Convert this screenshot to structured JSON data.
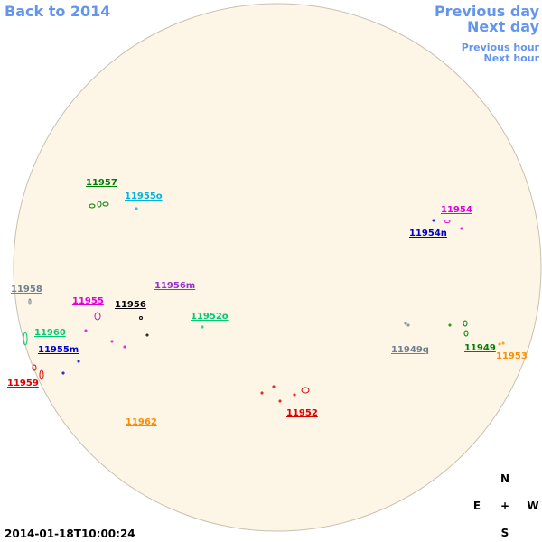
{
  "nav": {
    "back": "Back to 2014",
    "previous_day": "Previous day",
    "next_day": "Next day",
    "previous_hour": "Previous hour",
    "next_hour": "Next hour"
  },
  "timestamp": "2014-01-18T10:00:24",
  "compass": {
    "north": "N",
    "east": "E",
    "center": "+",
    "west": "W",
    "south": "S"
  },
  "regions": [
    {
      "label": "11957",
      "color": "#008000"
    },
    {
      "label": "11955o",
      "color": "#00b4e0"
    },
    {
      "label": "11954",
      "color": "#e000e0"
    },
    {
      "label": "11954n",
      "color": "#0000c8"
    },
    {
      "label": "11958",
      "color": "#708090"
    },
    {
      "label": "11956m",
      "color": "#9932cc"
    },
    {
      "label": "11955",
      "color": "#e000e0"
    },
    {
      "label": "11956",
      "color": "#000000"
    },
    {
      "label": "11952o",
      "color": "#00cc77"
    },
    {
      "label": "11960",
      "color": "#00cc77"
    },
    {
      "label": "11955m",
      "color": "#0000c8"
    },
    {
      "label": "11949q",
      "color": "#708090"
    },
    {
      "label": "11949",
      "color": "#008000"
    },
    {
      "label": "11953",
      "color": "#ff8c00"
    },
    {
      "label": "11959",
      "color": "#dd0000"
    },
    {
      "label": "11952",
      "color": "#dd0000"
    },
    {
      "label": "11962",
      "color": "#ff8c00"
    }
  ]
}
